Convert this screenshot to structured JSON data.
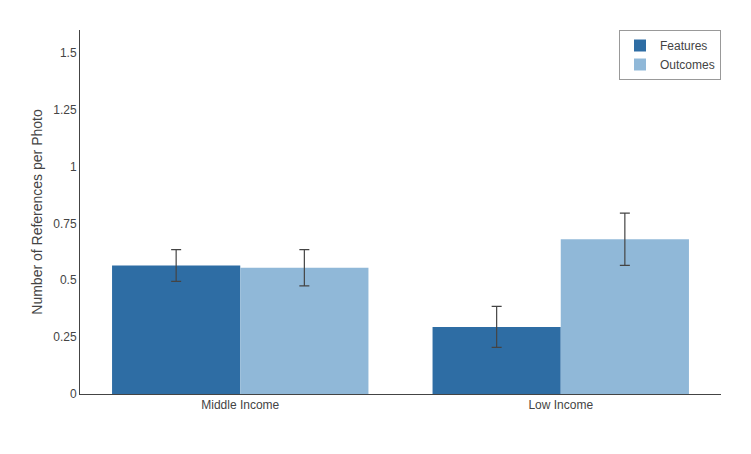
{
  "chart_data": {
    "type": "bar",
    "categories": [
      "Middle Income",
      "Low Income"
    ],
    "series": [
      {
        "name": "Features",
        "color": "#2E6DA4",
        "values": [
          0.565,
          0.295
        ],
        "errors": [
          0.07,
          0.09
        ]
      },
      {
        "name": "Outcomes",
        "color": "#90B8D8",
        "values": [
          0.555,
          0.68
        ],
        "errors": [
          0.08,
          0.115
        ]
      }
    ],
    "ylabel": "Number of References per Photo",
    "ylim": [
      0,
      1.6
    ],
    "yticks": [
      0,
      0.25,
      0.5,
      0.75,
      1,
      1.25,
      1.5
    ],
    "grid": false,
    "legend": "upper right"
  }
}
